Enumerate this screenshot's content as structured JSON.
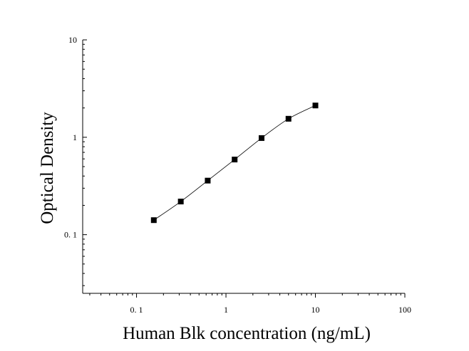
{
  "chart_data": {
    "type": "scatter",
    "title": "",
    "xlabel": "Human Blk concentration (ng/mL)",
    "ylabel": "Optical Density",
    "xscale": "log",
    "yscale": "log",
    "xlim": [
      0.025,
      100
    ],
    "ylim": [
      0.025,
      10
    ],
    "x_ticks": [
      0.1,
      1,
      10,
      100
    ],
    "x_tick_labels": [
      "0. 1",
      "1",
      "10",
      "100"
    ],
    "y_ticks": [
      0.1,
      1,
      10
    ],
    "y_tick_labels": [
      "0. 1",
      "1",
      "10"
    ],
    "grid": false,
    "fit_curve": true,
    "series": [
      {
        "x": [
          0.156,
          0.3125,
          0.625,
          1.25,
          2.5,
          5,
          10
        ],
        "y": [
          0.141,
          0.219,
          0.359,
          0.591,
          0.982,
          1.549,
          2.12
        ],
        "marker": "square",
        "color": "#000000"
      }
    ]
  }
}
